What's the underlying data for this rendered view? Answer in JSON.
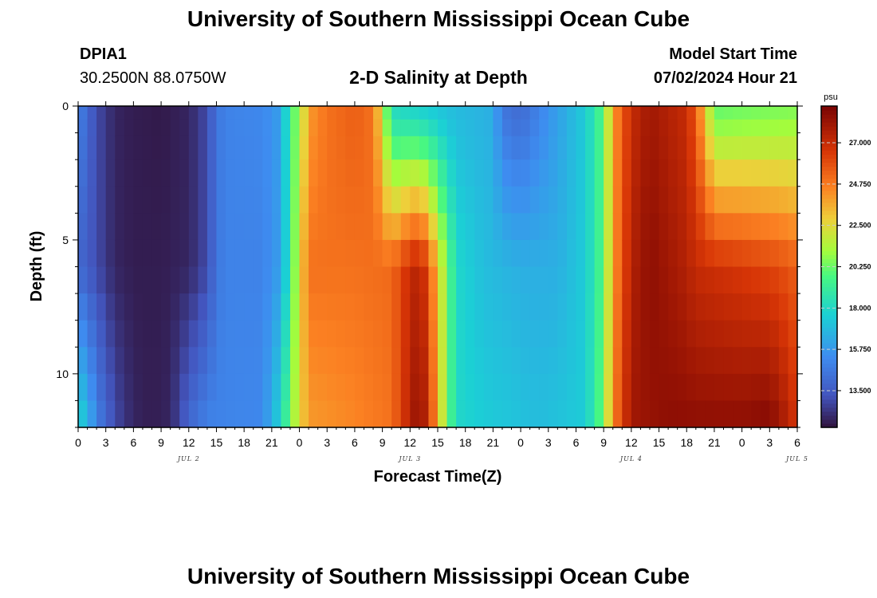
{
  "header": {
    "title": "University of Southern Mississippi Ocean Cube",
    "station_name": "DPIA1",
    "station_coords": "30.2500N  88.0750W",
    "plot_title": "2-D Salinity at Depth",
    "model_start_label": "Model Start Time",
    "model_start_value": "07/02/2024 Hour 21"
  },
  "footer": {
    "title": "University of Southern Mississippi Ocean Cube"
  },
  "chart_data": {
    "type": "heatmap",
    "title": "2-D Salinity at Depth",
    "xlabel": "Forecast Time(Z)",
    "ylabel": "Depth (ft)",
    "x_tick_labels": [
      "0",
      "3",
      "6",
      "9",
      "12",
      "15",
      "18",
      "21",
      "0",
      "3",
      "6",
      "9",
      "12",
      "15",
      "18",
      "21",
      "0",
      "3",
      "6",
      "9",
      "12",
      "15",
      "18",
      "21",
      "0",
      "3",
      "6"
    ],
    "day_labels": [
      {
        "label": "JUL 2",
        "hour": 12
      },
      {
        "label": "JUL 3",
        "hour": 36
      },
      {
        "label": "JUL 4",
        "hour": 60
      },
      {
        "label": "JUL 5",
        "hour": 78
      }
    ],
    "xlim_hours": [
      0,
      78
    ],
    "ylim_ft": [
      0,
      12
    ],
    "y_ticks": [
      0,
      5,
      10
    ],
    "y_minor_ticks": [
      1,
      2,
      3,
      4,
      6,
      7,
      8,
      9,
      11,
      12
    ],
    "depth_rows_ft": [
      0.25,
      0.75,
      1.5,
      2.5,
      3.5,
      4.5,
      5.5,
      6.5,
      7.5,
      8.5,
      9.5,
      10.5,
      11.5
    ],
    "hours_step": 1,
    "colorbar": {
      "unit": "psu",
      "min": 11.5,
      "max": 29.0,
      "ticks": [
        13.5,
        15.75,
        18.0,
        20.25,
        22.5,
        24.75,
        27.0
      ],
      "tick_labels": [
        "13.500",
        "15.750",
        "18.000",
        "20.250",
        "22.500",
        "24.750",
        "27.000"
      ]
    },
    "salinity_anchors_psu": {
      "surface": [
        [
          0,
          15.0
        ],
        [
          2,
          13.0
        ],
        [
          4,
          12.0
        ],
        [
          6,
          11.8
        ],
        [
          9,
          11.7
        ],
        [
          12,
          12.0
        ],
        [
          14,
          13.0
        ],
        [
          15,
          14.5
        ],
        [
          16,
          15.0
        ],
        [
          20,
          15.2
        ],
        [
          22,
          16.0
        ],
        [
          23,
          19.5
        ],
        [
          24,
          21.0
        ],
        [
          25,
          24.0
        ],
        [
          27,
          25.0
        ],
        [
          30,
          25.5
        ],
        [
          32,
          25.0
        ],
        [
          33,
          22.0
        ],
        [
          34,
          18.0
        ],
        [
          40,
          17.0
        ],
        [
          45,
          16.5
        ],
        [
          46,
          14.5
        ],
        [
          48,
          14.0
        ],
        [
          50,
          15.0
        ],
        [
          52,
          16.0
        ],
        [
          55,
          17.5
        ],
        [
          57,
          20.0
        ],
        [
          58,
          24.0
        ],
        [
          60,
          27.0
        ],
        [
          62,
          28.0
        ],
        [
          64,
          27.5
        ],
        [
          66,
          27.0
        ],
        [
          67,
          25.5
        ],
        [
          68,
          23.0
        ],
        [
          69,
          20.0
        ],
        [
          72,
          20.2
        ],
        [
          78,
          20.5
        ]
      ],
      "middle": [
        [
          0,
          14.0
        ],
        [
          2,
          13.0
        ],
        [
          4,
          12.0
        ],
        [
          6,
          11.8
        ],
        [
          9,
          11.8
        ],
        [
          12,
          12.0
        ],
        [
          14,
          13.0
        ],
        [
          15,
          14.5
        ],
        [
          16,
          15.0
        ],
        [
          20,
          15.0
        ],
        [
          22,
          16.0
        ],
        [
          23,
          19.0
        ],
        [
          24,
          22.5
        ],
        [
          25,
          25.0
        ],
        [
          30,
          25.0
        ],
        [
          34,
          25.2
        ],
        [
          36,
          27.0
        ],
        [
          37,
          27.5
        ],
        [
          38,
          26.0
        ],
        [
          39,
          23.0
        ],
        [
          40,
          20.5
        ],
        [
          41,
          18.0
        ],
        [
          44,
          17.0
        ],
        [
          48,
          16.5
        ],
        [
          52,
          16.5
        ],
        [
          55,
          17.5
        ],
        [
          57,
          20.0
        ],
        [
          58,
          24.0
        ],
        [
          60,
          27.5
        ],
        [
          62,
          28.5
        ],
        [
          66,
          27.5
        ],
        [
          67,
          27.0
        ],
        [
          72,
          26.5
        ],
        [
          76,
          26.0
        ],
        [
          78,
          25.5
        ]
      ],
      "bottom": [
        [
          0,
          18.0
        ],
        [
          1,
          17.0
        ],
        [
          2,
          15.0
        ],
        [
          4,
          13.0
        ],
        [
          6,
          12.0
        ],
        [
          8,
          11.8
        ],
        [
          10,
          12.0
        ],
        [
          12,
          14.0
        ],
        [
          14,
          15.0
        ],
        [
          20,
          15.2
        ],
        [
          22,
          18.0
        ],
        [
          23,
          20.5
        ],
        [
          24,
          22.5
        ],
        [
          25,
          24.0
        ],
        [
          30,
          24.5
        ],
        [
          34,
          25.0
        ],
        [
          36,
          27.5
        ],
        [
          37,
          28.5
        ],
        [
          38,
          27.0
        ],
        [
          39,
          23.5
        ],
        [
          40,
          20.5
        ],
        [
          41,
          18.0
        ],
        [
          44,
          17.5
        ],
        [
          50,
          17.0
        ],
        [
          55,
          17.5
        ],
        [
          57,
          20.5
        ],
        [
          58,
          24.5
        ],
        [
          60,
          28.0
        ],
        [
          64,
          28.5
        ],
        [
          72,
          28.5
        ],
        [
          75,
          28.8
        ],
        [
          77,
          27.5
        ],
        [
          78,
          26.5
        ]
      ]
    }
  }
}
